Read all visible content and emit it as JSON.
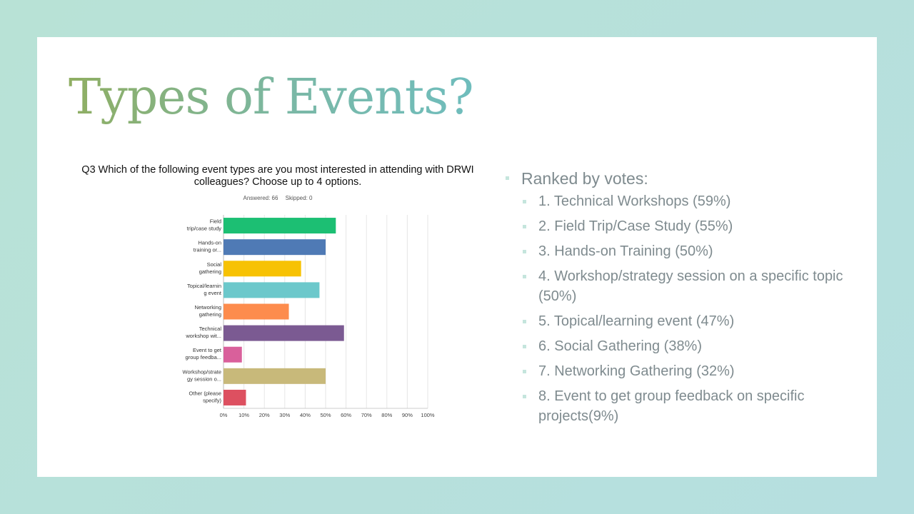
{
  "slide": {
    "title": "Types of Events?"
  },
  "survey": {
    "question": "Q3 Which of the following event types are you most interested in attending with DRWI colleagues? Choose up to 4 options.",
    "answered": "Answered: 66",
    "skipped": "Skipped: 0"
  },
  "chart_data": {
    "type": "bar",
    "orientation": "horizontal",
    "categories": [
      [
        "Field",
        "trip/case study"
      ],
      [
        "Hands-on",
        "training or..."
      ],
      [
        "Social",
        "gathering"
      ],
      [
        "Topical/learnin",
        "g event"
      ],
      [
        "Networking",
        "gathering"
      ],
      [
        "Technical",
        "workshop wit..."
      ],
      [
        "Event to get",
        "group feedba..."
      ],
      [
        "Workshop/strate",
        "gy session o..."
      ],
      [
        "Other (please",
        "specify)"
      ]
    ],
    "values": [
      55,
      50,
      38,
      47,
      32,
      59,
      9,
      50,
      11
    ],
    "colors": [
      "#1cbf73",
      "#4f7ab5",
      "#f7c204",
      "#6cc8cb",
      "#fd8c4d",
      "#7b5a92",
      "#d9609b",
      "#c8b97a",
      "#dd5060"
    ],
    "xlim": [
      0,
      100
    ],
    "xticks": [
      "0%",
      "10%",
      "20%",
      "30%",
      "40%",
      "50%",
      "60%",
      "70%",
      "80%",
      "90%",
      "100%"
    ],
    "grid": true
  },
  "ranking": {
    "heading": "Ranked by votes:",
    "items": [
      "1. Technical Workshops (59%)",
      "2. Field Trip/Case Study (55%)",
      "3. Hands-on Training (50%)",
      "4. Workshop/strategy session on a specific topic (50%)",
      "5. Topical/learning event (47%)",
      "6. Social Gathering (38%)",
      "7. Networking Gathering (32%)",
      "8. Event to get group feedback on specific projects(9%)"
    ]
  }
}
